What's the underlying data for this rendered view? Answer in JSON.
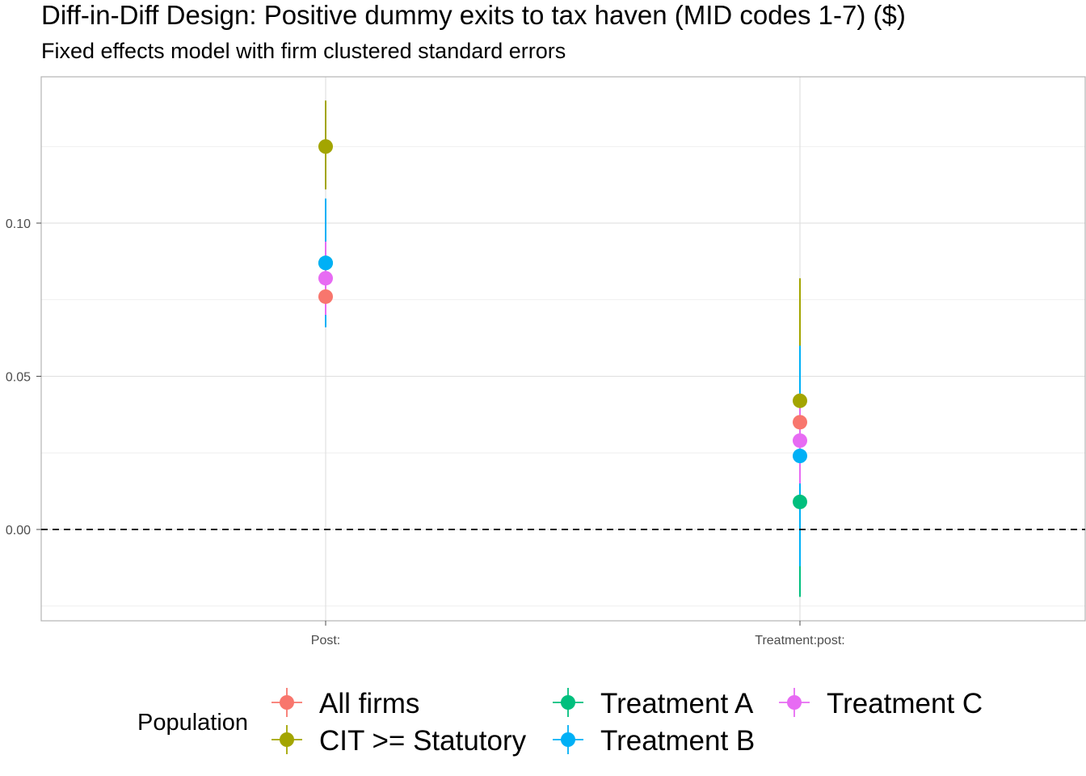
{
  "chart_data": {
    "type": "scatter",
    "title": "Diff-in-Diff Design: Positive dummy exits to tax haven (MID codes 1-7)  ($)",
    "subtitle": "Fixed effects model with firm clustered standard errors",
    "xlabel": "",
    "ylabel": "",
    "categories": [
      "Post:",
      "Treatment:post:"
    ],
    "ylim": [
      -0.03,
      0.15
    ],
    "yticks": [
      0.0,
      0.05,
      0.1
    ],
    "ytick_labels": [
      "0.00",
      "0.05",
      "0.10"
    ],
    "reference_line": {
      "y": 0,
      "style": "dashed"
    },
    "grid": true,
    "legend": {
      "title": "Population",
      "position": "bottom"
    },
    "series": [
      {
        "name": "All firms",
        "color": "#F8766D",
        "points": [
          {
            "category": "Post:",
            "estimate": 0.076,
            "low": 0.069,
            "high": 0.083
          },
          {
            "category": "Treatment:post:",
            "estimate": 0.035,
            "low": 0.022,
            "high": 0.048
          }
        ]
      },
      {
        "name": "CIT >= Statutory",
        "color": "#A3A500",
        "points": [
          {
            "category": "Post:",
            "estimate": 0.125,
            "low": 0.111,
            "high": 0.14
          },
          {
            "category": "Treatment:post:",
            "estimate": 0.042,
            "low": 0.003,
            "high": 0.082
          }
        ]
      },
      {
        "name": "Treatment A",
        "color": "#00BF7D",
        "points": [
          {
            "category": "Post:",
            "estimate": 0.087,
            "low": 0.08,
            "high": 0.094
          },
          {
            "category": "Treatment:post:",
            "estimate": 0.009,
            "low": -0.022,
            "high": 0.04
          }
        ]
      },
      {
        "name": "Treatment B",
        "color": "#00B0F6",
        "points": [
          {
            "category": "Post:",
            "estimate": 0.087,
            "low": 0.066,
            "high": 0.108
          },
          {
            "category": "Treatment:post:",
            "estimate": 0.024,
            "low": -0.012,
            "high": 0.06
          }
        ]
      },
      {
        "name": "Treatment C",
        "color": "#E76BF3",
        "points": [
          {
            "category": "Post:",
            "estimate": 0.082,
            "low": 0.07,
            "high": 0.094
          },
          {
            "category": "Treatment:post:",
            "estimate": 0.029,
            "low": 0.015,
            "high": 0.043
          }
        ]
      }
    ]
  }
}
